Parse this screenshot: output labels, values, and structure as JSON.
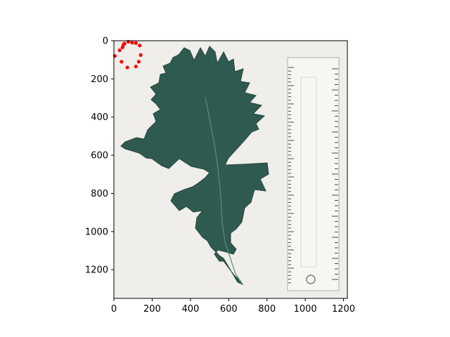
{
  "chart_data": {
    "type": "scatter",
    "title": "",
    "xlabel": "",
    "ylabel": "",
    "xlim": [
      0,
      1220
    ],
    "ylim": [
      1350,
      0
    ],
    "x_ticks": [
      0,
      200,
      400,
      600,
      800,
      1000,
      1200
    ],
    "y_ticks": [
      0,
      200,
      400,
      600,
      800,
      1000,
      1200
    ],
    "x_tick_labels": [
      "0",
      "200",
      "400",
      "600",
      "800",
      "1000",
      "1200"
    ],
    "y_tick_labels": [
      "0",
      "200",
      "400",
      "600",
      "800",
      "1000",
      "1200"
    ],
    "grid": false,
    "legend": "none",
    "background_image": {
      "description": "scanned leaf specimen with a ruler",
      "leaf_color": "#2f5a50",
      "paper_color": "#efeeea",
      "ruler_color": "#f6f6f2"
    },
    "series": [
      {
        "color": "#ff0000",
        "marker": "circle",
        "points": [
          {
            "x": 55,
            "y": 15
          },
          {
            "x": 75,
            "y": 5
          },
          {
            "x": 95,
            "y": 10
          },
          {
            "x": 115,
            "y": 12
          },
          {
            "x": 135,
            "y": 25
          },
          {
            "x": 140,
            "y": 75
          },
          {
            "x": 130,
            "y": 110
          },
          {
            "x": 115,
            "y": 135
          },
          {
            "x": 70,
            "y": 140
          },
          {
            "x": 40,
            "y": 110
          },
          {
            "x": 5,
            "y": 80
          },
          {
            "x": 30,
            "y": 50
          },
          {
            "x": 45,
            "y": 35
          },
          {
            "x": 50,
            "y": 20
          }
        ]
      }
    ]
  }
}
